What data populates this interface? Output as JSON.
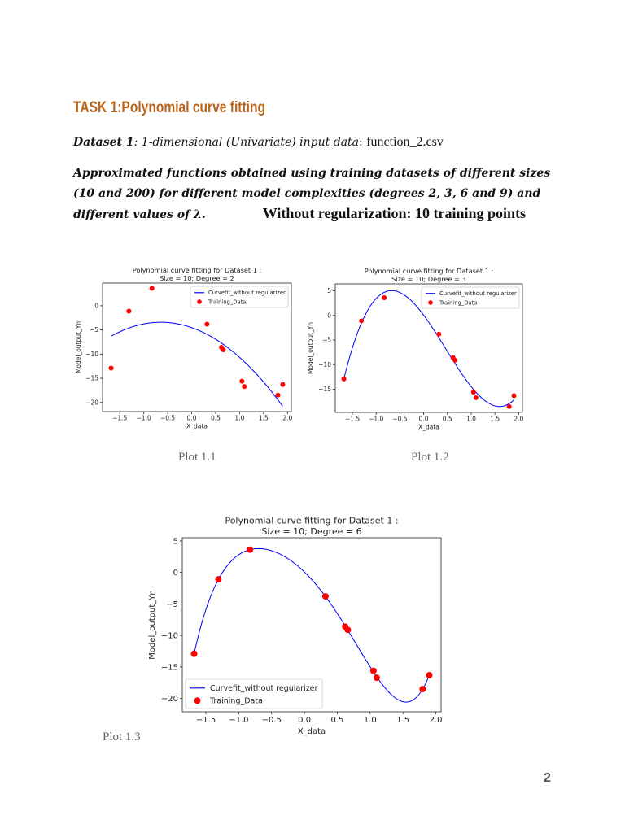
{
  "heading": {
    "title": "TASK 1:Polynomial curve fitting"
  },
  "dataset": {
    "label": "Dataset 1",
    "description": ": 1-dimensional (Univariate) input data",
    "sep": ": ",
    "file": "function_2.csv"
  },
  "description": "Approximated functions obtained using training datasets of different sizes (10 and 200) for different model complexities (degrees 2, 3, 6 and 9) and different values of λ.",
  "subheading": "Without regularization: 10 training points",
  "captions": [
    "Plot 1.1",
    "Plot 1.2",
    "Plot 1.3"
  ],
  "page_number": "2",
  "colors": {
    "heading": "#b8651b",
    "curve": "#0000ff",
    "points": "#ff0000"
  },
  "chart_data": [
    {
      "type": "line+scatter",
      "title": "Polynomial curve fitting for Dataset 1 :",
      "subtitle": "Size = 10; Degree = 2",
      "degree": 2,
      "xlabel": "X_data",
      "ylabel": "Model_output_Yn",
      "xlim": [
        -1.86,
        2.08
      ],
      "ylim": [
        -21.9,
        4.7
      ],
      "xticks": [
        -1.5,
        -1.0,
        -0.5,
        0.0,
        0.5,
        1.0,
        1.5,
        2.0
      ],
      "yticks": [
        0,
        -5,
        -10,
        -15,
        -20
      ],
      "legend": {
        "position": "upper right",
        "entries": [
          "Curvefit_without regularizer",
          "Training_Data"
        ]
      },
      "grid": false,
      "series": [
        {
          "name": "Training_Data",
          "type": "scatter",
          "x": [
            -1.68,
            -1.31,
            -0.83,
            0.32,
            0.62,
            0.66,
            1.05,
            1.1,
            1.8,
            1.9
          ],
          "y": [
            -12.9,
            -1.1,
            3.6,
            -3.8,
            -8.6,
            -9.1,
            -15.6,
            -16.7,
            -18.5,
            -16.3
          ]
        },
        {
          "name": "Curvefit_without regularizer",
          "type": "line",
          "fit": "least-squares polynomial, degree 2"
        }
      ]
    },
    {
      "type": "line+scatter",
      "title": "Polynomial curve fitting for Dataset 1 :",
      "subtitle": "Size = 10; Degree = 3",
      "degree": 3,
      "xlabel": "X_data",
      "ylabel": "Model_output_Yn",
      "xlim": [
        -1.86,
        2.08
      ],
      "ylim": [
        -19.7,
        6.4
      ],
      "xticks": [
        -1.5,
        -1.0,
        -0.5,
        0.0,
        0.5,
        1.0,
        1.5,
        2.0
      ],
      "yticks": [
        5,
        0,
        -5,
        -10,
        -15
      ],
      "legend": {
        "position": "upper right",
        "entries": [
          "Curvefit_without regularizer",
          "Training_Data"
        ]
      },
      "grid": false,
      "series": [
        {
          "name": "Training_Data",
          "type": "scatter",
          "x": [
            -1.68,
            -1.31,
            -0.83,
            0.32,
            0.62,
            0.66,
            1.05,
            1.1,
            1.8,
            1.9
          ],
          "y": [
            -12.9,
            -1.1,
            3.6,
            -3.8,
            -8.6,
            -9.1,
            -15.6,
            -16.7,
            -18.5,
            -16.3
          ]
        },
        {
          "name": "Curvefit_without regularizer",
          "type": "line",
          "fit": "least-squares polynomial, degree 3"
        }
      ]
    },
    {
      "type": "line+scatter",
      "title": "Polynomial curve fitting for Dataset 1 :",
      "subtitle": "Size = 10; Degree = 6",
      "degree": 6,
      "xlabel": "X_data",
      "ylabel": "Model_output_Yn",
      "xlim": [
        -1.86,
        2.08
      ],
      "ylim": [
        -22.1,
        5.5
      ],
      "xticks": [
        -1.5,
        -1.0,
        -0.5,
        0.0,
        0.5,
        1.0,
        1.5,
        2.0
      ],
      "yticks": [
        5,
        0,
        -5,
        -10,
        -15,
        -20
      ],
      "legend": {
        "position": "lower left",
        "entries": [
          "Curvefit_without regularizer",
          "Training_Data"
        ]
      },
      "grid": false,
      "series": [
        {
          "name": "Training_Data",
          "type": "scatter",
          "x": [
            -1.68,
            -1.31,
            -0.83,
            0.32,
            0.62,
            0.66,
            1.05,
            1.1,
            1.8,
            1.9
          ],
          "y": [
            -12.9,
            -1.1,
            3.6,
            -3.8,
            -8.6,
            -9.1,
            -15.6,
            -16.7,
            -18.5,
            -16.3
          ]
        },
        {
          "name": "Curvefit_without regularizer",
          "type": "line",
          "fit": "least-squares polynomial, degree 6"
        }
      ]
    }
  ]
}
